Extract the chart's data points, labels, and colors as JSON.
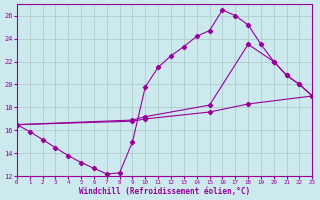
{
  "xlabel": "Windchill (Refroidissement éolien,°C)",
  "xlim": [
    0,
    23
  ],
  "ylim": [
    12,
    27
  ],
  "xticks": [
    0,
    1,
    2,
    3,
    4,
    5,
    6,
    7,
    8,
    9,
    10,
    11,
    12,
    13,
    14,
    15,
    16,
    17,
    18,
    19,
    20,
    21,
    22,
    23
  ],
  "yticks": [
    12,
    14,
    16,
    18,
    20,
    22,
    24,
    26
  ],
  "bg_color": "#cce9ed",
  "line_color": "#990099",
  "grid_color": "#b0cccc",
  "line1_x": [
    0,
    1,
    2,
    3,
    4,
    5,
    6,
    7,
    8,
    9,
    10,
    11,
    12,
    13,
    14,
    15,
    16,
    17,
    18,
    19,
    20,
    21,
    22,
    23
  ],
  "line1_y": [
    16.5,
    15.9,
    15.2,
    14.5,
    13.8,
    13.2,
    12.7,
    12.2,
    12.3,
    15.0,
    19.8,
    21.5,
    22.5,
    23.3,
    24.2,
    24.7,
    26.5,
    26.0,
    25.2,
    23.5,
    22.0,
    20.8,
    20.0,
    19.0
  ],
  "line2_x": [
    0,
    9,
    10,
    15,
    18,
    20,
    21,
    22,
    23
  ],
  "line2_y": [
    16.5,
    16.9,
    17.2,
    18.2,
    23.5,
    22.0,
    20.8,
    20.0,
    19.0
  ],
  "line3_x": [
    0,
    9,
    10,
    15,
    18,
    23
  ],
  "line3_y": [
    16.5,
    16.8,
    17.0,
    17.6,
    18.3,
    19.0
  ]
}
